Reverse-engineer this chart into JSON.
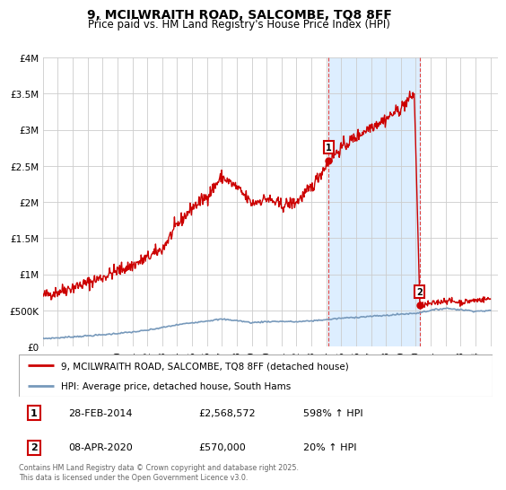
{
  "title": "9, MCILWRAITH ROAD, SALCOMBE, TQ8 8FF",
  "subtitle": "Price paid vs. HM Land Registry's House Price Index (HPI)",
  "background_color": "#ffffff",
  "plot_bg_color": "#ffffff",
  "grid_color": "#cccccc",
  "ylim": [
    0,
    4000000
  ],
  "yticks": [
    0,
    500000,
    1000000,
    1500000,
    2000000,
    2500000,
    3000000,
    3500000,
    4000000
  ],
  "ytick_labels": [
    "£0",
    "£500K",
    "£1M",
    "£1.5M",
    "£2M",
    "£2.5M",
    "£3M",
    "£3.5M",
    "£4M"
  ],
  "xlim_start": 1995.0,
  "xlim_end": 2025.5,
  "xtick_years": [
    1995,
    1996,
    1997,
    1998,
    1999,
    2000,
    2001,
    2002,
    2003,
    2004,
    2005,
    2006,
    2007,
    2008,
    2009,
    2010,
    2011,
    2012,
    2013,
    2014,
    2015,
    2016,
    2017,
    2018,
    2019,
    2020,
    2021,
    2022,
    2023,
    2024,
    2025
  ],
  "red_line_color": "#cc0000",
  "blue_line_color": "#7799bb",
  "shaded_region_color": "#ddeeff",
  "marker1_date": 2014.16,
  "marker1_value": 2568572,
  "marker2_date": 2020.27,
  "marker2_value": 570000,
  "marker1_label": "1",
  "marker2_label": "2",
  "annotation1": [
    "1",
    "28-FEB-2014",
    "£2,568,572",
    "598% ↑ HPI"
  ],
  "annotation2": [
    "2",
    "08-APR-2020",
    "£570,000",
    "20% ↑ HPI"
  ],
  "legend_line1": "9, MCILWRAITH ROAD, SALCOMBE, TQ8 8FF (detached house)",
  "legend_line2": "HPI: Average price, detached house, South Hams",
  "footnote": "Contains HM Land Registry data © Crown copyright and database right 2025.\nThis data is licensed under the Open Government Licence v3.0.",
  "red_seed": 42,
  "blue_seed": 7,
  "red_line_x_base": [
    1995.0,
    1996.0,
    1997.0,
    1998.0,
    1999.0,
    2000.0,
    2001.0,
    2002.0,
    2003.0,
    2004.0,
    2005.0,
    2006.0,
    2007.0,
    2008.0,
    2009.0,
    2010.0,
    2011.0,
    2012.0,
    2013.0,
    2014.16,
    2015.0,
    2016.0,
    2017.0,
    2018.0,
    2019.0,
    2019.9,
    2020.27,
    2021.0,
    2022.0,
    2023.0,
    2024.0,
    2025.0
  ],
  "red_line_y_base": [
    700000,
    760000,
    820000,
    880000,
    960000,
    1050000,
    1120000,
    1230000,
    1350000,
    1680000,
    1920000,
    2080000,
    2350000,
    2200000,
    1980000,
    2050000,
    1950000,
    2000000,
    2200000,
    2568572,
    2750000,
    2900000,
    3050000,
    3150000,
    3300000,
    3500000,
    570000,
    590000,
    640000,
    610000,
    640000,
    660000
  ],
  "blue_line_x": [
    1995.0,
    1996.0,
    1997.0,
    1998.0,
    1999.0,
    2000.0,
    2001.0,
    2002.0,
    2003.0,
    2004.0,
    2005.0,
    2006.0,
    2007.0,
    2008.0,
    2009.0,
    2010.0,
    2011.0,
    2012.0,
    2013.0,
    2014.0,
    2015.0,
    2016.0,
    2017.0,
    2018.0,
    2019.0,
    2020.0,
    2021.0,
    2022.0,
    2023.0,
    2024.0,
    2025.0
  ],
  "blue_line_y": [
    110000,
    120000,
    135000,
    148000,
    162000,
    182000,
    200000,
    225000,
    262000,
    300000,
    330000,
    355000,
    378000,
    360000,
    330000,
    345000,
    348000,
    342000,
    355000,
    372000,
    392000,
    405000,
    418000,
    430000,
    448000,
    460000,
    500000,
    530000,
    510000,
    490000,
    495000
  ]
}
